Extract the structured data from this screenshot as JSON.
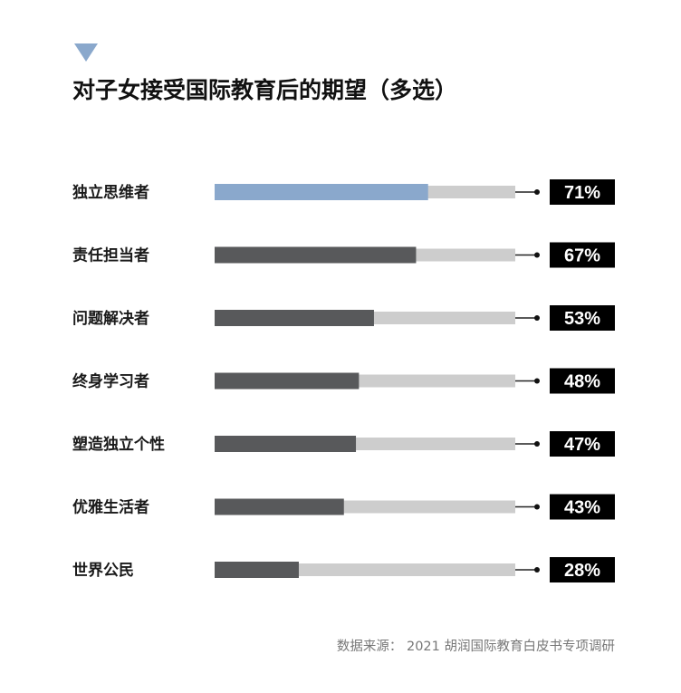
{
  "chart_data": {
    "type": "bar",
    "orientation": "horizontal",
    "title": "对子女接受国际教育后的期望（多选）",
    "categories": [
      "独立思维者",
      "责任担当者",
      "问题解决者",
      "终身学习者",
      "塑造独立个性",
      "优雅生活者",
      "世界公民"
    ],
    "values": [
      71,
      67,
      53,
      48,
      47,
      43,
      28
    ],
    "value_labels": [
      "71%",
      "67%",
      "53%",
      "48%",
      "47%",
      "43%",
      "28%"
    ],
    "xlim": [
      0,
      100
    ],
    "grid": false,
    "highlight_index": 0
  },
  "source": "数据来源： 2021 胡润国际教育白皮书专项调研",
  "colors": {
    "highlight": "#8aa8cc",
    "bar": "#58595b",
    "track": "#cdcdcd",
    "badge": "#000000",
    "marker": "#8aa8cc"
  }
}
